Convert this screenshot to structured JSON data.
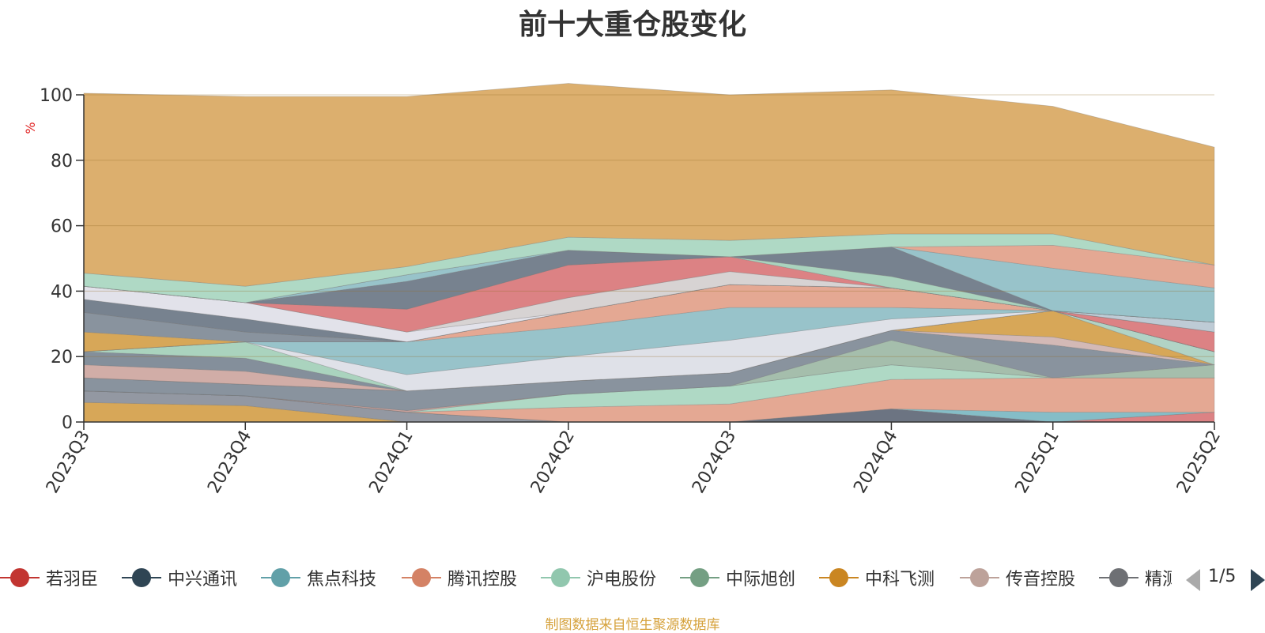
{
  "title": "前十大重仓股变化",
  "footer": "制图数据来自恒生聚源数据库",
  "pager": {
    "text": "1/5"
  },
  "chart_data": {
    "type": "area",
    "stacked": true,
    "unit_label": "%",
    "categories": [
      "2023Q3",
      "2023Q4",
      "2024Q1",
      "2024Q2",
      "2024Q3",
      "2024Q4",
      "2025Q1",
      "2025Q2"
    ],
    "y_ticks": [
      0,
      20,
      40,
      60,
      80,
      100
    ],
    "ylim": [
      0,
      100
    ],
    "grid": true,
    "legend_position": "bottom",
    "legend_visible": [
      "若羽臣",
      "中兴通讯",
      "焦点科技",
      "腾讯控股",
      "沪电股份",
      "中际旭创",
      "中科飞测",
      "传音控股",
      "精测电子"
    ],
    "series": [
      {
        "name": "中科飞测",
        "color": "#d4a04a",
        "values": [
          6,
          5,
          0,
          0,
          0,
          0,
          0,
          0
        ]
      },
      {
        "name": "s2",
        "color": "#8a8f9a",
        "values": [
          3.5,
          3,
          3,
          0,
          0,
          0,
          0,
          0
        ]
      },
      {
        "name": "s3",
        "color": "#d9777a",
        "values": [
          0,
          0,
          0,
          0,
          0,
          0,
          0,
          3
        ]
      },
      {
        "name": "s4",
        "color": "#5f6877",
        "values": [
          0,
          0,
          0,
          0,
          0,
          4,
          0,
          0
        ]
      },
      {
        "name": "s5",
        "color": "#7bb7c2",
        "values": [
          0,
          0,
          0,
          0,
          0,
          0,
          3,
          0
        ]
      },
      {
        "name": "s6",
        "color": "#e2a18a",
        "values": [
          0,
          0,
          0,
          4.5,
          5.5,
          9,
          10.5,
          10.5
        ]
      },
      {
        "name": "s7",
        "color": "#a8d6c0",
        "values": [
          0,
          0,
          0,
          4,
          5.5,
          4.5,
          0,
          0
        ]
      },
      {
        "name": "s8",
        "color": "#c89a95",
        "values": [
          0,
          0,
          0.5,
          0,
          0,
          0,
          0,
          0
        ]
      },
      {
        "name": "s9",
        "color": "#9db9a5",
        "values": [
          0,
          0,
          0,
          0,
          0,
          7.5,
          0,
          4
        ]
      },
      {
        "name": "s10",
        "color": "#7f8a96",
        "values": [
          4,
          3.5,
          6,
          4,
          4,
          3,
          10,
          0
        ]
      },
      {
        "name": "s11",
        "color": "#cfb3b0",
        "values": [
          0,
          0,
          0,
          0,
          0,
          0,
          2.5,
          0
        ]
      },
      {
        "name": "s12",
        "color": "#d4a04a",
        "values": [
          0,
          0,
          0,
          0,
          0,
          0,
          8,
          0
        ]
      },
      {
        "name": "s13",
        "color": "#aacfc0",
        "values": [
          0,
          0,
          0,
          0,
          0,
          0,
          0,
          4
        ]
      },
      {
        "name": "s14",
        "color": "#cda6a0",
        "values": [
          4,
          4,
          0,
          0,
          0,
          0,
          0,
          0
        ]
      },
      {
        "name": "s15",
        "color": "#7a8693",
        "values": [
          4,
          4,
          0,
          0,
          0,
          0,
          0,
          0
        ]
      },
      {
        "name": "s16",
        "color": "#a3cfb9",
        "values": [
          0,
          5,
          0,
          0,
          0,
          0,
          0,
          0
        ]
      },
      {
        "name": "s17",
        "color": "#dcdee6",
        "values": [
          0,
          0,
          5,
          7.5,
          10,
          3.5,
          0,
          0
        ]
      },
      {
        "name": "s18",
        "color": "#8fbec6",
        "values": [
          0,
          0,
          10,
          9,
          10,
          3.5,
          0,
          0
        ]
      },
      {
        "name": "s19",
        "color": "#e2a18a",
        "values": [
          0,
          0,
          0,
          4.5,
          7,
          6,
          0,
          0
        ]
      },
      {
        "name": "s20",
        "color": "#d9777a",
        "values": [
          0,
          0,
          0,
          0,
          0,
          0,
          0,
          6
        ]
      },
      {
        "name": "s21",
        "color": "#d4a04a",
        "values": [
          6,
          0,
          0,
          0,
          0,
          0,
          0,
          0
        ]
      },
      {
        "name": "s22",
        "color": "#7f8a96",
        "values": [
          6,
          3,
          0,
          0,
          0,
          0,
          0,
          0
        ]
      },
      {
        "name": "s23",
        "color": "#b9c7d1",
        "values": [
          0,
          0,
          0,
          0,
          0,
          0,
          0,
          3
        ]
      },
      {
        "name": "s24",
        "color": "#6b7785",
        "values": [
          4,
          4,
          0,
          0,
          0,
          0,
          0,
          0
        ]
      },
      {
        "name": "s25",
        "color": "#dfe0e8",
        "values": [
          4,
          5,
          3,
          0,
          0,
          0,
          0,
          0
        ]
      },
      {
        "name": "s26",
        "color": "#d4cfcf",
        "values": [
          0,
          0,
          0,
          4.5,
          4,
          0,
          0,
          0
        ]
      },
      {
        "name": "s27",
        "color": "#d9777a",
        "values": [
          0,
          0,
          7,
          10,
          4.5,
          0,
          0,
          0
        ]
      },
      {
        "name": "s28",
        "color": "#a3cfb9",
        "values": [
          0,
          0,
          0,
          0,
          0,
          3.5,
          0,
          0
        ]
      },
      {
        "name": "s29",
        "color": "#6b7785",
        "values": [
          0,
          0,
          8.5,
          4.5,
          0,
          9,
          0,
          0
        ]
      },
      {
        "name": "s30",
        "color": "#8fbec6",
        "values": [
          0,
          0,
          2,
          0,
          0,
          0,
          13,
          10.5
        ]
      },
      {
        "name": "s31",
        "color": "#e2a18a",
        "values": [
          0,
          0,
          0,
          0,
          0,
          0,
          7,
          7
        ]
      },
      {
        "name": "s32",
        "color": "#a8d6c0",
        "values": [
          4,
          5,
          2.5,
          4,
          5,
          4,
          3.5,
          0
        ]
      },
      {
        "name": "s33",
        "color": "#d9a862",
        "values": [
          55,
          58,
          52,
          47,
          44.5,
          44,
          39,
          36
        ]
      }
    ]
  },
  "legend": [
    {
      "name": "若羽臣",
      "color": "#c23531"
    },
    {
      "name": "中兴通讯",
      "color": "#2f4554"
    },
    {
      "name": "焦点科技",
      "color": "#61a0a8"
    },
    {
      "name": "腾讯控股",
      "color": "#d48265"
    },
    {
      "name": "沪电股份",
      "color": "#91c7ae"
    },
    {
      "name": "中际旭创",
      "color": "#749f83"
    },
    {
      "name": "中科飞测",
      "color": "#ca8622"
    },
    {
      "name": "传音控股",
      "color": "#bda29a"
    },
    {
      "name": "精测电子",
      "color": "#6e7074"
    }
  ]
}
